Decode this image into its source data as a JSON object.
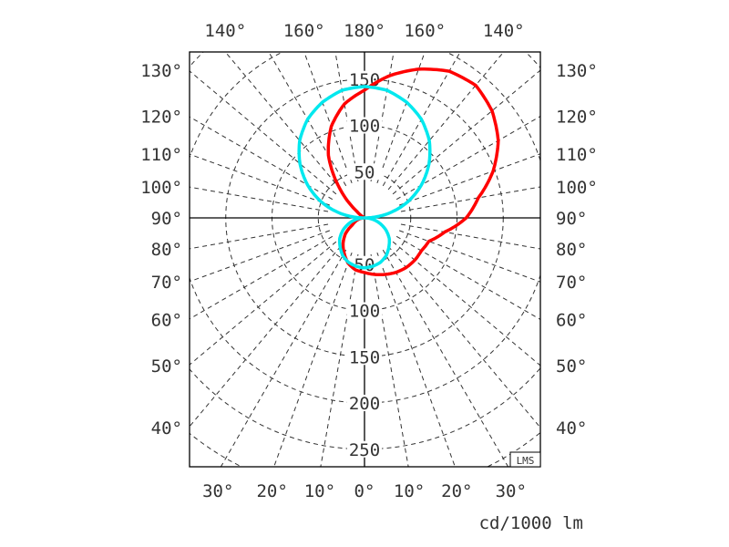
{
  "chart_data": {
    "type": "polar",
    "unit_label": "cd/1000 lm",
    "badge": "LMS",
    "radial_ticks_up": [
      "50",
      "100",
      "150"
    ],
    "radial_ticks_down": [
      "50",
      "100",
      "150",
      "200",
      "250"
    ],
    "radial_tick_values_up": [
      50,
      100,
      150
    ],
    "radial_tick_values_down": [
      50,
      100,
      150,
      200,
      250
    ],
    "top_angle_labels": [
      {
        "angle": -140,
        "text": "140°"
      },
      {
        "angle": -160,
        "text": "160°"
      },
      {
        "angle": 180,
        "text": "180°"
      },
      {
        "angle": 160,
        "text": "160°"
      },
      {
        "angle": 140,
        "text": "140°"
      }
    ],
    "side_angle_labels": [
      {
        "angle": 130,
        "text": "130°"
      },
      {
        "angle": 120,
        "text": "120°"
      },
      {
        "angle": 110,
        "text": "110°"
      },
      {
        "angle": 100,
        "text": "100°"
      },
      {
        "angle": 90,
        "text": "90°"
      },
      {
        "angle": 80,
        "text": "80°"
      },
      {
        "angle": 70,
        "text": "70°"
      },
      {
        "angle": 60,
        "text": "60°"
      },
      {
        "angle": 50,
        "text": "50°"
      },
      {
        "angle": 40,
        "text": "40°"
      }
    ],
    "bottom_angle_labels": [
      {
        "angle": -30,
        "text": "30°"
      },
      {
        "angle": -20,
        "text": "20°"
      },
      {
        "angle": -10,
        "text": "10°"
      },
      {
        "angle": 0,
        "text": "0°"
      },
      {
        "angle": 10,
        "text": "10°"
      },
      {
        "angle": 20,
        "text": "20°"
      },
      {
        "angle": 30,
        "text": "30°"
      }
    ],
    "grid": true,
    "grid_angle_step": 10,
    "grid_radius_step": 50,
    "series": [
      {
        "color": "#ff0000",
        "gamma": [
          -170,
          -160,
          -150,
          -140,
          -130,
          -120,
          -90,
          -60,
          -50,
          -40,
          -30,
          -20,
          -10,
          0,
          10,
          20,
          30,
          40,
          50,
          60,
          70,
          80,
          90,
          100,
          110,
          120,
          130,
          140,
          150,
          160,
          170,
          180
        ],
        "values": [
          125,
          105,
          78,
          42,
          10,
          0,
          0,
          15,
          27,
          36,
          44,
          52,
          57,
          59,
          62,
          65,
          68,
          70,
          71,
          71,
          74,
          88,
          110,
          125,
          148,
          167,
          180,
          187,
          183,
          171,
          156,
          138
        ]
      },
      {
        "color": "#00e8ee",
        "gamma": [
          -170,
          -160,
          -150,
          -140,
          -130,
          -120,
          -110,
          -100,
          -90,
          -80,
          -70,
          -60,
          -50,
          -40,
          -30,
          -20,
          -10,
          0,
          10,
          20,
          30,
          40,
          50,
          60,
          70,
          80,
          90,
          100,
          110,
          120,
          130,
          140,
          150,
          160,
          170,
          180
        ],
        "values": [
          140,
          133,
          123,
          109,
          91,
          71,
          49,
          25,
          0,
          9,
          18,
          27,
          35,
          41,
          47,
          51,
          53,
          54,
          53,
          51,
          47,
          41,
          35,
          27,
          18,
          9,
          0,
          25,
          49,
          71,
          91,
          109,
          123,
          133,
          140,
          142
        ]
      }
    ]
  }
}
